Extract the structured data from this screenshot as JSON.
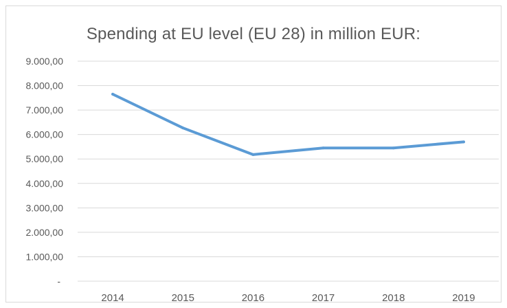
{
  "chart_data": {
    "type": "line",
    "title": "Spending at EU level (EU 28) in million EUR:",
    "categories": [
      "2014",
      "2015",
      "2016",
      "2017",
      "2018",
      "2019"
    ],
    "series": [
      {
        "values": [
          7650,
          6270,
          5180,
          5450,
          5450,
          5700
        ]
      }
    ],
    "y_ticks": [
      "-",
      "1.000,00",
      "2.000,00",
      "3.000,00",
      "4.000,00",
      "5.000,00",
      "6.000,00",
      "7.000,00",
      "8.000,00",
      "9.000,00"
    ],
    "ylim": [
      0,
      9000
    ],
    "grid": true,
    "legend": "none",
    "colors": {
      "line": "#5b9bd5",
      "grid": "#d9d9d9",
      "text": "#595959"
    }
  }
}
